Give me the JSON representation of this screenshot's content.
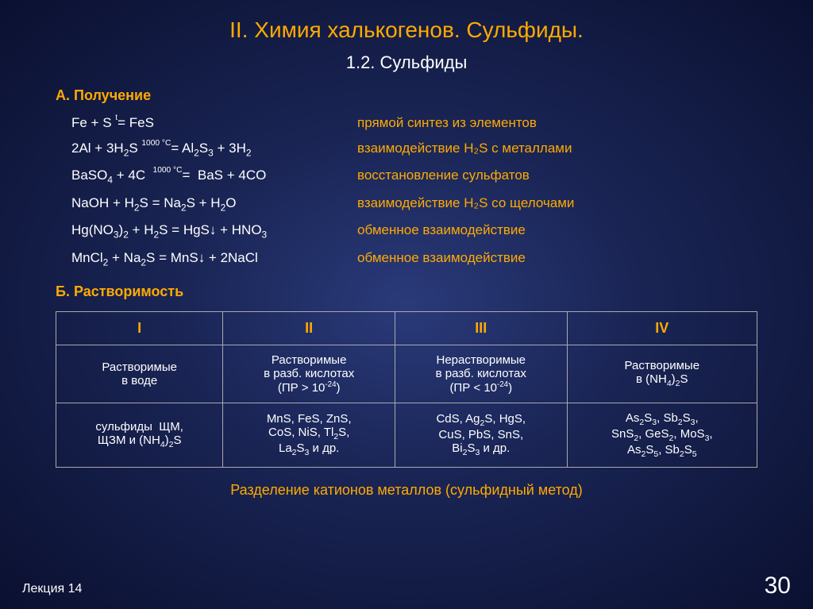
{
  "title": "II. Химия халькогенов. Сульфиды.",
  "subtitle": "1.2. Сульфиды",
  "sectionA": "А. Получение",
  "sectionB": "Б. Растворимость",
  "reactions": [
    {
      "formula": "Fe + S = FeS",
      "cond": "t",
      "desc": "прямой синтез из элементов"
    },
    {
      "formula": "2Al + 3H₂S = Al₂S₃ + 3H₂",
      "cond": "1000 °C",
      "desc": "взаимодействие H₂S с металлами"
    },
    {
      "formula": "BaSO₄ + 4C  =  BaS + 4CO",
      "cond": "1000 °C",
      "desc": "восстановление сульфатов"
    },
    {
      "formula": "NaOH + H₂S = Na₂S + H₂O",
      "cond": "",
      "desc": "взаимодействие H₂S со щелочами"
    },
    {
      "formula": "Hg(NO₃)₂ + H₂S = HgS↓ + HNO₃",
      "cond": "",
      "desc": "обменное взаимодействие"
    },
    {
      "formula": "MnCl₂ + Na₂S = MnS↓ + 2NaCl",
      "cond": "",
      "desc": "обменное взаимодействие"
    }
  ],
  "table": {
    "headers": [
      "I",
      "II",
      "III",
      "IV"
    ],
    "row1": [
      "Растворимые в воде",
      "Растворимые в разб. кислотах (ПР > 10⁻²⁴)",
      "Нерастворимые в разб. кислотах (ПР < 10⁻²⁴)",
      "Растворимые в (NH₄)₂S"
    ],
    "row2": [
      "сульфиды  ЩМ, ЩЗМ и (NH₄)₂S",
      "MnS, FeS, ZnS, CoS, NiS, Tl₂S, La₂S₃ и др.",
      "CdS, Ag₂S, HgS, CuS, PbS, SnS, Bi₂S₃ и др.",
      "As₂S₃, Sb₂S₃, SnS₂, GeS₂, MoS₃, As₂S₅, Sb₂S₅"
    ]
  },
  "tableCaption": "Разделение катионов металлов (сульфидный метод)",
  "footerLeft": "Лекция 14",
  "footerRight": "30",
  "colors": {
    "accent": "#ffaa00",
    "text": "#ffffff"
  }
}
